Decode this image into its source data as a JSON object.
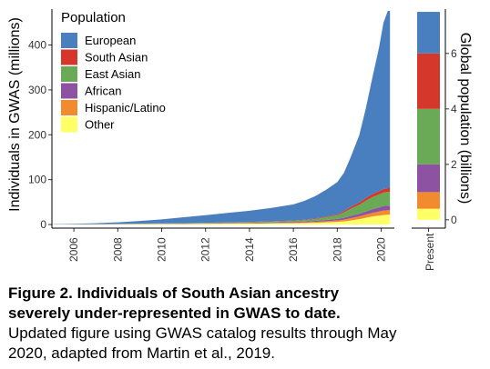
{
  "colors": {
    "European": "#4a7fbf",
    "South Asian": "#d6372b",
    "East Asian": "#6aaa56",
    "African": "#8e52a3",
    "Hispanic/Latino": "#f28a2e",
    "Other": "#ffff66"
  },
  "chart_data": [
    {
      "type": "area",
      "title": "",
      "xlabel": "",
      "ylabel": "Individuals in GWAS (millions)",
      "xlim": [
        2005,
        2020.6
      ],
      "ylim": [
        -8,
        480
      ],
      "x_ticks": [
        "2006",
        "2008",
        "2010",
        "2012",
        "2014",
        "2016",
        "2018",
        "2020"
      ],
      "y_ticks": [
        "0",
        "100",
        "200",
        "300",
        "400"
      ],
      "grid": false,
      "stacked": true,
      "legend": {
        "title": "Population",
        "position": "top-left",
        "entries": [
          "European",
          "South Asian",
          "East Asian",
          "African",
          "Hispanic/Latino",
          "Other"
        ]
      },
      "x": [
        2005.0,
        2006.0,
        2007.0,
        2008.0,
        2009.0,
        2010.0,
        2011.0,
        2012.0,
        2013.0,
        2014.0,
        2015.0,
        2016.0,
        2016.5,
        2017.0,
        2017.5,
        2018.0,
        2018.3,
        2018.6,
        2019.0,
        2019.3,
        2019.6,
        2019.9,
        2020.1,
        2020.3,
        2020.4
      ],
      "series": [
        {
          "name": "Other",
          "values": [
            0.1,
            0.2,
            0.4,
            0.6,
            0.8,
            1,
            1.2,
            1.5,
            1.8,
            2.1,
            2.5,
            3,
            3.5,
            4,
            5,
            6,
            7,
            9,
            12,
            15,
            18,
            20,
            21,
            22,
            22
          ]
        },
        {
          "name": "Hispanic/Latino",
          "values": [
            0,
            0.1,
            0.1,
            0.2,
            0.3,
            0.4,
            0.5,
            0.6,
            0.7,
            0.8,
            1,
            1.2,
            1.5,
            2,
            2.5,
            3,
            4,
            5,
            6,
            7,
            8,
            9,
            10,
            10,
            10
          ]
        },
        {
          "name": "African",
          "values": [
            0,
            0.1,
            0.1,
            0.2,
            0.3,
            0.4,
            0.5,
            0.6,
            0.8,
            1,
            1.2,
            1.5,
            1.8,
            2.2,
            2.8,
            3.5,
            4,
            5,
            6,
            7,
            8,
            9,
            10,
            10,
            10
          ]
        },
        {
          "name": "East Asian",
          "values": [
            0,
            0.1,
            0.2,
            0.3,
            0.4,
            0.5,
            0.7,
            0.9,
            1.1,
            1.4,
            1.8,
            2.4,
            3,
            4,
            6,
            8,
            12,
            16,
            20,
            24,
            27,
            29,
            30,
            31,
            31
          ]
        },
        {
          "name": "South Asian",
          "values": [
            0,
            0.1,
            0.1,
            0.1,
            0.2,
            0.2,
            0.3,
            0.3,
            0.4,
            0.5,
            0.6,
            0.8,
            1,
            1.2,
            1.5,
            2,
            3,
            4,
            5,
            6,
            7,
            7,
            8,
            8,
            8
          ]
        },
        {
          "name": "European",
          "values": [
            0.5,
            1,
            2,
            3.5,
            6,
            9,
            13,
            17,
            21,
            25,
            30,
            36,
            42,
            50,
            60,
            72,
            85,
            110,
            150,
            200,
            260,
            320,
            370,
            395,
            395
          ]
        }
      ]
    },
    {
      "type": "bar",
      "title": "",
      "xlabel": "",
      "ylabel": "Global population (billions)",
      "categories": [
        "Present"
      ],
      "ylim": [
        -0.3,
        7.6
      ],
      "y_ticks": [
        "0",
        "2",
        "4",
        "6"
      ],
      "stacked": true,
      "series": [
        {
          "name": "Other",
          "values": [
            0.4
          ]
        },
        {
          "name": "Hispanic/Latino",
          "values": [
            0.6
          ]
        },
        {
          "name": "African",
          "values": [
            1.0
          ]
        },
        {
          "name": "East Asian",
          "values": [
            2.0
          ]
        },
        {
          "name": "South Asian",
          "values": [
            2.0
          ]
        },
        {
          "name": "European",
          "values": [
            1.5
          ]
        }
      ]
    }
  ],
  "caption": {
    "bold_line1": "Figure 2. Individuals of South Asian ancestry",
    "bold_line2": "severely under-represented in GWAS to date.",
    "line3": "Updated figure using GWAS catalog results through May",
    "line4": "2020, adapted from Martin et al., 2019."
  }
}
